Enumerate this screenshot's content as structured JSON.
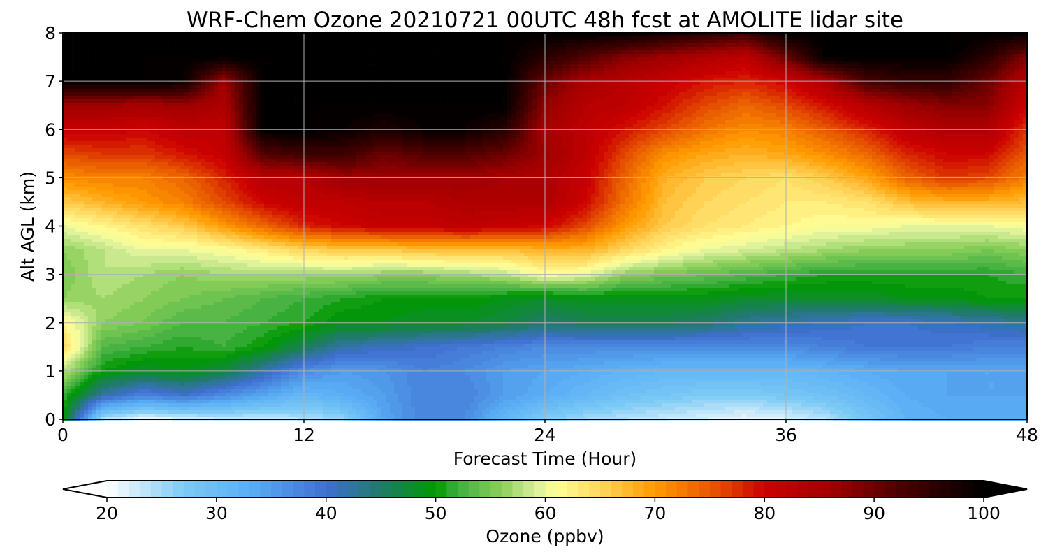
{
  "chart_data": {
    "type": "heatmap",
    "title": "WRF-Chem Ozone  20210721 00UTC 48h fcst at AMOLITE lidar site",
    "xlabel": "Forecast Time (Hour)",
    "ylabel": "Alt AGL (km)",
    "xlim": [
      0,
      48
    ],
    "ylim": [
      0,
      8
    ],
    "xticks": [
      {
        "value": 0,
        "label": "0"
      },
      {
        "value": 12,
        "label": "12"
      },
      {
        "value": 24,
        "label": "24"
      },
      {
        "value": 36,
        "label": "36"
      },
      {
        "value": 48,
        "label": "48"
      }
    ],
    "yticks": [
      {
        "value": 0,
        "label": "0"
      },
      {
        "value": 1,
        "label": "1"
      },
      {
        "value": 2,
        "label": "2"
      },
      {
        "value": 3,
        "label": "3"
      },
      {
        "value": 4,
        "label": "4"
      },
      {
        "value": 5,
        "label": "5"
      },
      {
        "value": 6,
        "label": "6"
      },
      {
        "value": 7,
        "label": "7"
      },
      {
        "value": 8,
        "label": "8"
      }
    ],
    "grid": true,
    "colorbar": {
      "label": "Ozone  (ppbv)",
      "orientation": "horizontal",
      "extend": "both",
      "range": [
        20,
        100
      ],
      "levels_step": 1,
      "ticks": [
        {
          "value": 20,
          "label": "20"
        },
        {
          "value": 30,
          "label": "30"
        },
        {
          "value": 40,
          "label": "40"
        },
        {
          "value": 50,
          "label": "50"
        },
        {
          "value": 60,
          "label": "60"
        },
        {
          "value": 70,
          "label": "70"
        },
        {
          "value": 80,
          "label": "80"
        },
        {
          "value": 90,
          "label": "90"
        },
        {
          "value": 100,
          "label": "100"
        }
      ],
      "color_stops": [
        {
          "value": 20,
          "color": "#ffffff"
        },
        {
          "value": 27,
          "color": "#7ccaf5"
        },
        {
          "value": 33,
          "color": "#5aaef5"
        },
        {
          "value": 40,
          "color": "#3f6fd0"
        },
        {
          "value": 45,
          "color": "#1f7a6a"
        },
        {
          "value": 50,
          "color": "#009900"
        },
        {
          "value": 52,
          "color": "#3eae3e"
        },
        {
          "value": 56,
          "color": "#8ccf5a"
        },
        {
          "value": 59,
          "color": "#d6ee9a"
        },
        {
          "value": 61,
          "color": "#ffff99"
        },
        {
          "value": 65,
          "color": "#ffd75e"
        },
        {
          "value": 70,
          "color": "#ff9a00"
        },
        {
          "value": 75,
          "color": "#e85a00"
        },
        {
          "value": 80,
          "color": "#cc0000"
        },
        {
          "value": 86,
          "color": "#a00000"
        },
        {
          "value": 92,
          "color": "#500000"
        },
        {
          "value": 100,
          "color": "#000000"
        }
      ]
    },
    "x": [
      0,
      2,
      4,
      6,
      8,
      10,
      12,
      14,
      16,
      18,
      20,
      22,
      24,
      26,
      28,
      30,
      32,
      34,
      36,
      38,
      40,
      42,
      44,
      46,
      48
    ],
    "y": [
      0,
      0.5,
      1,
      1.5,
      2,
      2.5,
      3,
      3.5,
      4,
      4.5,
      5,
      5.5,
      6,
      6.5,
      7,
      7.5,
      8
    ],
    "z": [
      [
        50,
        24,
        21,
        22,
        23,
        23,
        24,
        26,
        34,
        38,
        37,
        31,
        27,
        25,
        24,
        23,
        22,
        21,
        22,
        24,
        28,
        32,
        33,
        33,
        34
      ],
      [
        52,
        42,
        38,
        40,
        37,
        34,
        31,
        33,
        35,
        38,
        38,
        35,
        33,
        31,
        29,
        28,
        27,
        27,
        28,
        29,
        31,
        33,
        34,
        34,
        34
      ],
      [
        58,
        50,
        48,
        49,
        47,
        42,
        37,
        35,
        36,
        38,
        37,
        35,
        34,
        33,
        32,
        31,
        31,
        31,
        31,
        32,
        33,
        34,
        34,
        34,
        34
      ],
      [
        65,
        53,
        52,
        51,
        52,
        50,
        46,
        42,
        41,
        40,
        39,
        38,
        37,
        37,
        37,
        37,
        37,
        37,
        37,
        38,
        39,
        39,
        39,
        38,
        38
      ],
      [
        62,
        56,
        55,
        53,
        53,
        52,
        51,
        49,
        49,
        48,
        48,
        47,
        45,
        46,
        46,
        46,
        45,
        43,
        42,
        41,
        40,
        40,
        41,
        42,
        43
      ],
      [
        56,
        57,
        56,
        55,
        54,
        53,
        52,
        51,
        50,
        50,
        50,
        49,
        48,
        49,
        49,
        49,
        49,
        48,
        48,
        48,
        48,
        49,
        49,
        50,
        50
      ],
      [
        55,
        58,
        57,
        56,
        57,
        57,
        57,
        57,
        56,
        56,
        57,
        58,
        61,
        60,
        56,
        55,
        54,
        53,
        52,
        51,
        51,
        51,
        51,
        51,
        52
      ],
      [
        56,
        58,
        60,
        60,
        61,
        63,
        65,
        66,
        66,
        67,
        67,
        67,
        68,
        68,
        65,
        62,
        60,
        59,
        58,
        57,
        56,
        56,
        56,
        55,
        56
      ],
      [
        60,
        62,
        64,
        66,
        70,
        74,
        78,
        80,
        81,
        81,
        82,
        81,
        80,
        76,
        70,
        66,
        64,
        63,
        62,
        61,
        61,
        60,
        60,
        60,
        61
      ],
      [
        66,
        68,
        70,
        72,
        76,
        80,
        82,
        82,
        83,
        83,
        84,
        84,
        84,
        80,
        73,
        67,
        65,
        64,
        63,
        63,
        64,
        67,
        68,
        68,
        67
      ],
      [
        71,
        72,
        72,
        74,
        78,
        83,
        83,
        86,
        86,
        86,
        86,
        85,
        84,
        81,
        74,
        68,
        66,
        65,
        64,
        66,
        69,
        74,
        77,
        76,
        72
      ],
      [
        76,
        77,
        77,
        79,
        81,
        92,
        94,
        94,
        90,
        92,
        92,
        90,
        86,
        82,
        76,
        71,
        69,
        68,
        69,
        71,
        74,
        78,
        80,
        80,
        75
      ],
      [
        81,
        81,
        80,
        82,
        82,
        100,
        100,
        99,
        97,
        99,
        99,
        96,
        85,
        82,
        79,
        76,
        73,
        71,
        72,
        75,
        78,
        82,
        84,
        84,
        77
      ],
      [
        86,
        86,
        85,
        86,
        84,
        100,
        100,
        100,
        100,
        100,
        100,
        100,
        87,
        83,
        82,
        79,
        76,
        74,
        76,
        79,
        83,
        86,
        88,
        88,
        80
      ],
      [
        100,
        100,
        100,
        99,
        86,
        100,
        100,
        100,
        100,
        100,
        100,
        100,
        90,
        85,
        83,
        81,
        79,
        78,
        80,
        85,
        93,
        95,
        95,
        90,
        83
      ],
      [
        100,
        100,
        100,
        100,
        100,
        100,
        100,
        100,
        100,
        100,
        100,
        100,
        96,
        92,
        88,
        86,
        84,
        82,
        90,
        100,
        100,
        100,
        100,
        96,
        88
      ],
      [
        100,
        100,
        100,
        100,
        100,
        100,
        100,
        100,
        100,
        100,
        100,
        100,
        100,
        100,
        100,
        98,
        96,
        94,
        100,
        100,
        100,
        100,
        100,
        100,
        100
      ]
    ]
  }
}
